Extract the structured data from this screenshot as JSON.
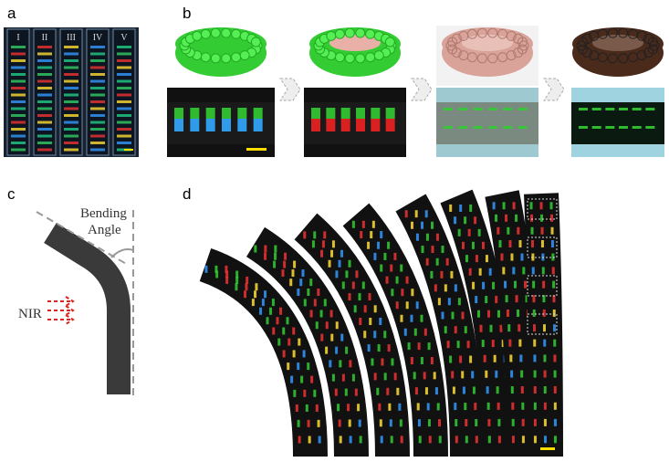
{
  "panels": {
    "a": {
      "label": "a",
      "strips": [
        "I",
        "II",
        "III",
        "IV",
        "V"
      ]
    },
    "b": {
      "label": "b"
    },
    "c": {
      "label": "c",
      "bending": "Bending",
      "angle": "Angle",
      "nir": "NIR"
    },
    "d": {
      "label": "d"
    }
  }
}
